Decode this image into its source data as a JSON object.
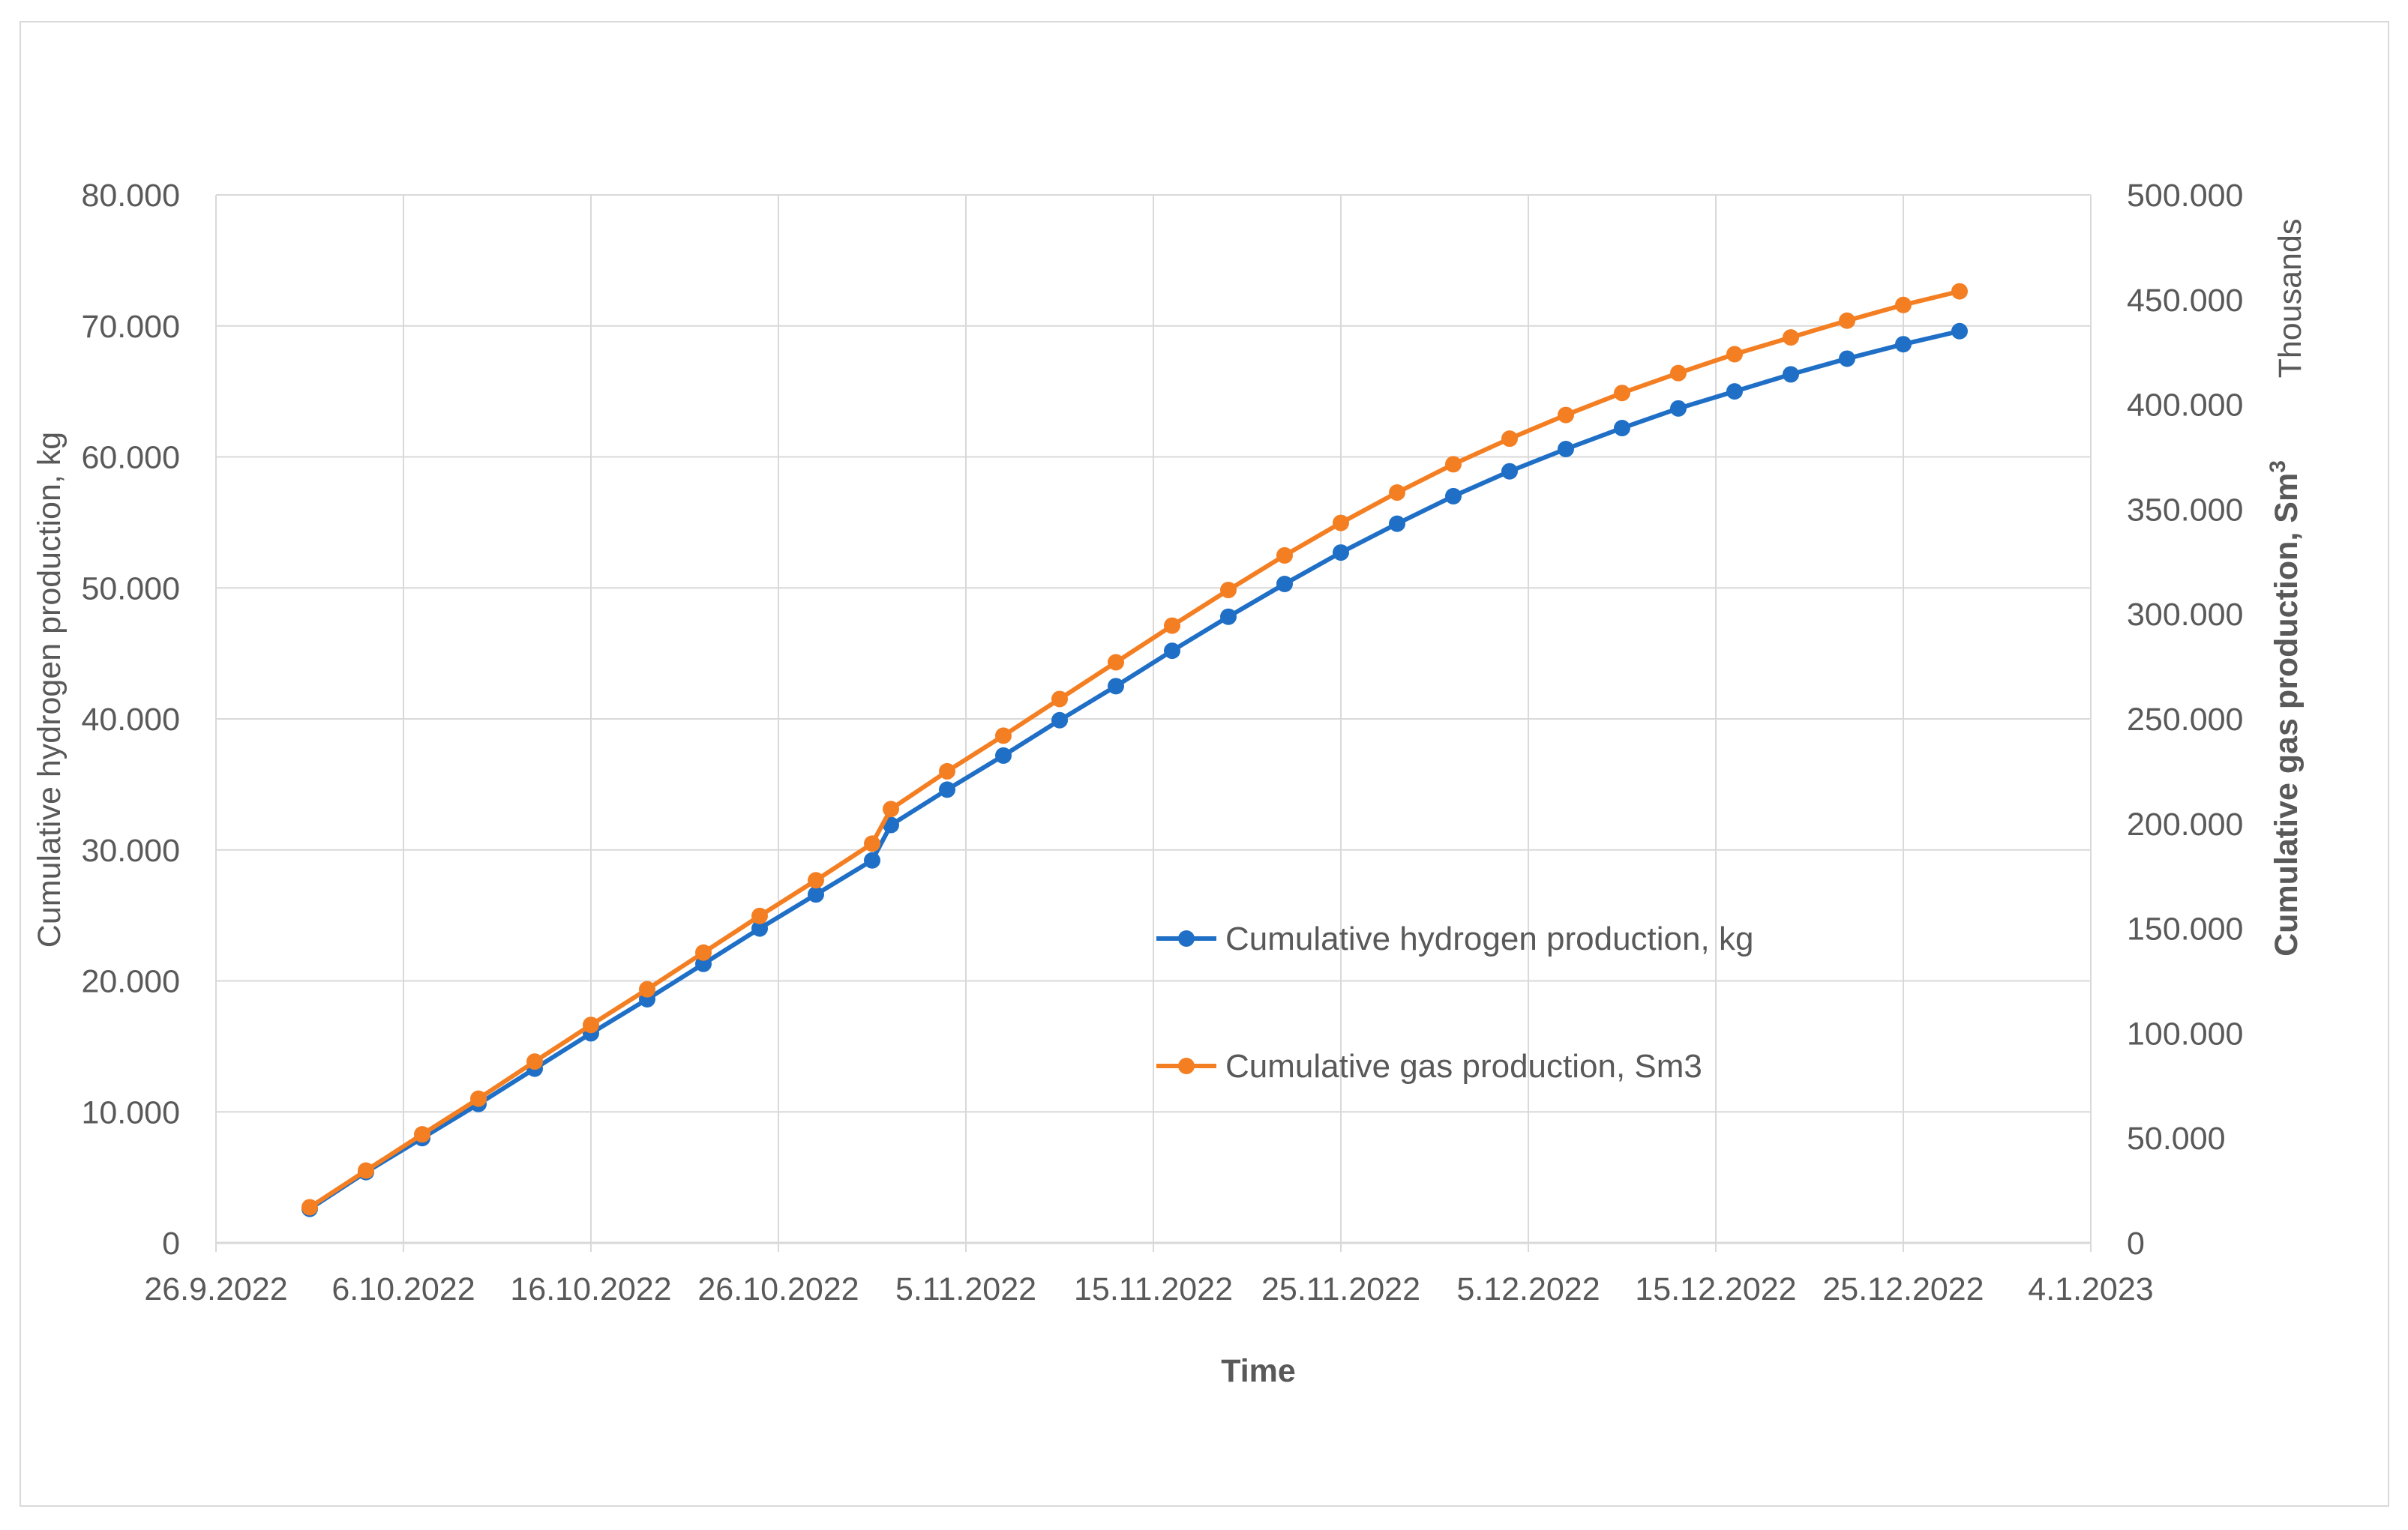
{
  "chart_data": {
    "type": "line",
    "title": "",
    "xlabel": "Time",
    "ylabel_left": "Cumulative hydrogen production, kg",
    "ylabel_right": "Cumulative gas production, Sm",
    "ylabel_right_sup": "3",
    "right_unit_label": "Thousands",
    "x_ticks": [
      "26.9.2022",
      "6.10.2022",
      "16.10.2022",
      "26.10.2022",
      "5.11.2022",
      "15.11.2022",
      "25.11.2022",
      "5.12.2022",
      "15.12.2022",
      "25.12.2022",
      "4.1.2023"
    ],
    "xlim_days_from_start": [
      0,
      100
    ],
    "y_left_ticks": [
      "0",
      "10.000",
      "20.000",
      "30.000",
      "40.000",
      "50.000",
      "60.000",
      "70.000",
      "80.000"
    ],
    "y_left_lim": [
      0,
      80000
    ],
    "y_right_ticks": [
      "0",
      "50.000",
      "100.000",
      "150.000",
      "200.000",
      "250.000",
      "300.000",
      "350.000",
      "400.000",
      "450.000",
      "500.000"
    ],
    "y_right_lim": [
      0,
      500000
    ],
    "grid": true,
    "legend_position": "center-right",
    "x_dates": [
      "1.10.2022",
      "4.10.2022",
      "7.10.2022",
      "10.10.2022",
      "13.10.2022",
      "16.10.2022",
      "19.10.2022",
      "22.10.2022",
      "25.10.2022",
      "28.10.2022",
      "31.10.2022",
      "1.11.2022",
      "4.11.2022",
      "7.11.2022",
      "10.11.2022",
      "13.11.2022",
      "16.11.2022",
      "19.11.2022",
      "22.11.2022",
      "25.11.2022",
      "28.11.2022",
      "1.12.2022",
      "4.12.2022",
      "7.12.2022",
      "10.12.2022",
      "13.12.2022",
      "16.12.2022",
      "19.12.2022",
      "22.12.2022",
      "25.12.2022",
      "28.12.2022"
    ],
    "x_days": [
      5,
      8,
      11,
      14,
      17,
      20,
      23,
      26,
      29,
      32,
      35,
      36,
      39,
      42,
      45,
      48,
      51,
      54,
      57,
      60,
      63,
      66,
      69,
      72,
      75,
      78,
      81,
      84,
      87,
      90,
      93
    ],
    "series": [
      {
        "name": "Cumulative hydrogen production, kg",
        "axis": "left",
        "color": "#1f6fc6",
        "values": [
          2600,
          5400,
          8000,
          10600,
          13300,
          16000,
          18600,
          21300,
          24000,
          26600,
          29200,
          31900,
          34600,
          37200,
          39900,
          42500,
          45200,
          47800,
          50300,
          52700,
          54900,
          57000,
          58900,
          60600,
          62200,
          63700,
          65000,
          66300,
          67500,
          68600,
          69600
        ]
      },
      {
        "name": "Cumulative gas production, Sm3",
        "axis": "right",
        "color": "#f47f23",
        "values": [
          17000,
          34500,
          51800,
          68800,
          86500,
          104000,
          121000,
          138500,
          156000,
          173000,
          190500,
          207000,
          225000,
          242000,
          259500,
          277000,
          294500,
          311500,
          328000,
          343500,
          358000,
          371500,
          383700,
          395000,
          405500,
          415000,
          424000,
          432000,
          440000,
          447500,
          454000
        ]
      }
    ]
  },
  "colors": {
    "grid": "#d9d9d9",
    "text": "#595959"
  }
}
